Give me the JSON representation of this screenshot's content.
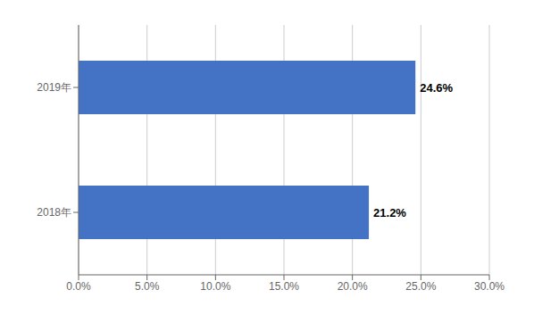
{
  "chart_data": {
    "type": "bar",
    "orientation": "horizontal",
    "categories": [
      "2018年",
      "2019年"
    ],
    "values": [
      0.212,
      0.246
    ],
    "value_labels": [
      "21.2%",
      "24.6%"
    ],
    "data_labels": true,
    "color": "#4472C4",
    "xlim": [
      0,
      0.3
    ],
    "xticks": [
      {
        "value": 0.0,
        "label": "0.0%"
      },
      {
        "value": 0.05,
        "label": "5.0%"
      },
      {
        "value": 0.1,
        "label": "10.0%"
      },
      {
        "value": 0.15,
        "label": "15.0%"
      },
      {
        "value": 0.2,
        "label": "20.0%"
      },
      {
        "value": 0.25,
        "label": "25.0%"
      },
      {
        "value": 0.3,
        "label": "30.0%"
      }
    ],
    "grid": true
  }
}
